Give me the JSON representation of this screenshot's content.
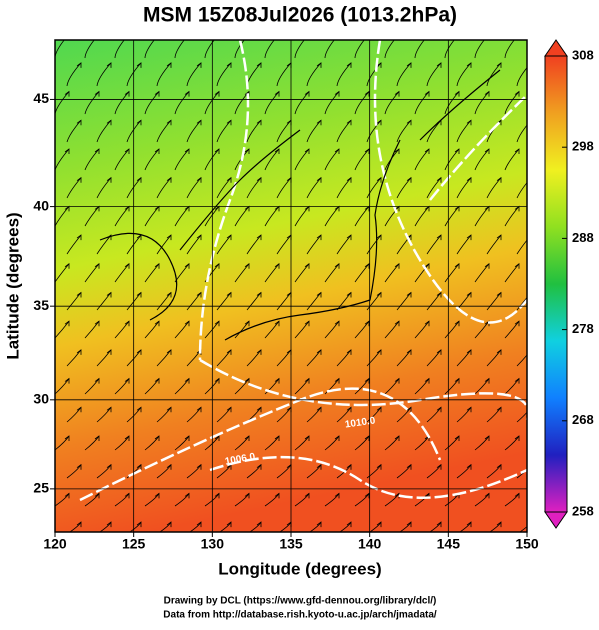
{
  "chart_data": {
    "type": "map",
    "title": "MSM 15Z08Jul2026 (1013.2hPa)",
    "x_label": "Longitude (degrees)",
    "y_label": "Latitude  (degrees)",
    "projection": "mercator",
    "xlim": [
      120,
      150
    ],
    "xticks": [
      120,
      125,
      130,
      135,
      140,
      145,
      150
    ],
    "ylim": [
      22.5,
      47.6
    ],
    "yticks": [
      25,
      30,
      35,
      40,
      45
    ],
    "grid": true,
    "colorbar": {
      "clim": [
        258,
        308
      ],
      "ticks": [
        258,
        268,
        278,
        288,
        298,
        308
      ],
      "colors": [
        "#e020c0",
        "#2020c0",
        "#1080ff",
        "#10d0e0",
        "#20c040",
        "#90e020",
        "#f0f020",
        "#f0a020",
        "#f04020"
      ]
    },
    "contour_labels": [
      "1010.0",
      "1006.0"
    ],
    "credits": [
      "Drawing by DCL (https://www.gfd-dennou.org/library/dcl/)",
      "Data from http://database.rish.kyoto-u.ac.jp/arch/jmadata/"
    ]
  }
}
